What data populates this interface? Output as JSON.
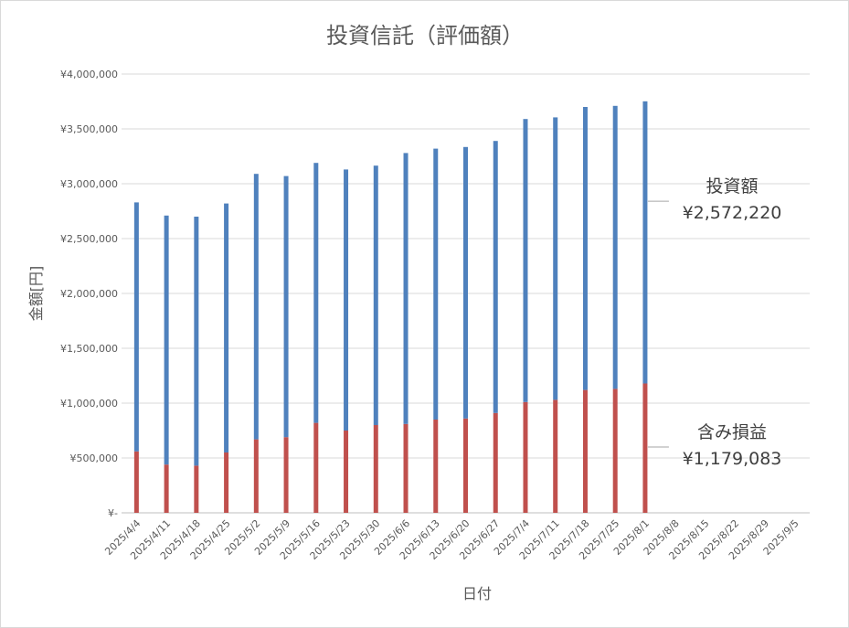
{
  "chart_data": {
    "type": "bar",
    "stacked": true,
    "title": "投資信託（評価額）",
    "xlabel": "日付",
    "ylabel": "金額[円]",
    "ylim": [
      0,
      4000000
    ],
    "yticks": [
      0,
      500000,
      1000000,
      1500000,
      2000000,
      2500000,
      3000000,
      3500000,
      4000000
    ],
    "ytick_labels": [
      "¥-",
      "¥500,000",
      "¥1,000,000",
      "¥1,500,000",
      "¥2,000,000",
      "¥2,500,000",
      "¥3,000,000",
      "¥3,500,000",
      "¥4,000,000"
    ],
    "grid": true,
    "categories": [
      "2025/4/4",
      "2025/4/11",
      "2025/4/18",
      "2025/4/25",
      "2025/5/2",
      "2025/5/9",
      "2025/5/16",
      "2025/5/23",
      "2025/5/30",
      "2025/6/6",
      "2025/6/13",
      "2025/6/20",
      "2025/6/27",
      "2025/7/4",
      "2025/7/11",
      "2025/7/18",
      "2025/7/25",
      "2025/8/1",
      "2025/8/8",
      "2025/8/15",
      "2025/8/22",
      "2025/8/29",
      "2025/9/5"
    ],
    "series": [
      {
        "name": "含み損益",
        "color": "#c0504d",
        "values": [
          560000,
          440000,
          430000,
          550000,
          670000,
          690000,
          820000,
          750000,
          800000,
          810000,
          850000,
          860000,
          910000,
          1010000,
          1030000,
          1120000,
          1130000,
          1179083,
          null,
          null,
          null,
          null,
          null
        ]
      },
      {
        "name": "投資額",
        "color": "#4f81bd",
        "values": [
          2270000,
          2270000,
          2270000,
          2270000,
          2420000,
          2380000,
          2370000,
          2380000,
          2365000,
          2470000,
          2470000,
          2475000,
          2480000,
          2580000,
          2575000,
          2580000,
          2580000,
          2572220,
          null,
          null,
          null,
          null,
          null
        ]
      }
    ],
    "annotations": [
      {
        "series": "投資額",
        "line1": "投資額",
        "line2": "¥2,572,220"
      },
      {
        "series": "含み損益",
        "line1": "含み損益",
        "line2": "¥1,179,083"
      }
    ]
  }
}
